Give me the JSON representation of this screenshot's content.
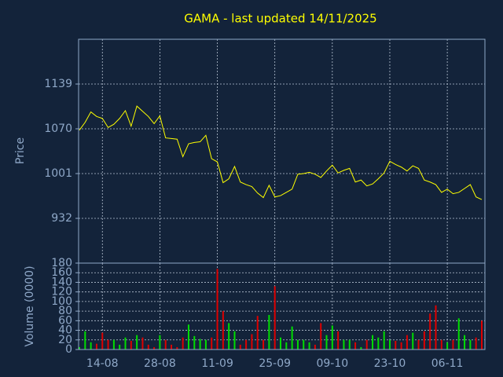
{
  "chart_data": [
    {
      "type": "line",
      "title": "GAMA - last updated 14/11/2025",
      "ylabel": "Price",
      "color": "#ffff00",
      "grid": true,
      "categories": [
        null,
        null,
        null,
        null,
        "14-08",
        null,
        null,
        null,
        null,
        null,
        null,
        null,
        null,
        null,
        "28-08",
        null,
        null,
        null,
        null,
        null,
        null,
        null,
        null,
        null,
        "11-09",
        null,
        null,
        null,
        null,
        null,
        null,
        null,
        null,
        null,
        "25-09",
        null,
        null,
        null,
        null,
        null,
        null,
        null,
        null,
        null,
        "09-10",
        null,
        null,
        null,
        null,
        null,
        null,
        null,
        null,
        null,
        "23-10",
        null,
        null,
        null,
        null,
        null,
        null,
        null,
        null,
        null,
        "06-11",
        null,
        null,
        null,
        null,
        null,
        null
      ],
      "values": [
        1068,
        1080,
        1096,
        1089,
        1086,
        1072,
        1077,
        1086,
        1098,
        1074,
        1105,
        1097,
        1089,
        1078,
        1090,
        1056,
        1055,
        1054,
        1027,
        1047,
        1049,
        1050,
        1060,
        1024,
        1019,
        987,
        993,
        1012,
        988,
        984,
        981,
        971,
        964,
        983,
        965,
        967,
        972,
        977,
        1000,
        1001,
        1003,
        1000,
        995,
        1005,
        1014,
        1002,
        1006,
        1009,
        988,
        991,
        982,
        985,
        993,
        1002,
        1020,
        1015,
        1011,
        1005,
        1013,
        1009,
        991,
        988,
        984,
        972,
        977,
        970,
        972,
        978,
        984,
        965,
        961
      ],
      "ylim": [
        863,
        1208
      ],
      "yticks": [
        932,
        1001,
        1070,
        1139
      ]
    },
    {
      "type": "bar",
      "ylabel": "Volume (0000)",
      "up_color": "#00dd00",
      "down_color": "#dd0000",
      "grid": true,
      "values": [
        5,
        38,
        15,
        12,
        35,
        20,
        20,
        10,
        25,
        18,
        30,
        25,
        10,
        5,
        30,
        20,
        10,
        5,
        25,
        52,
        28,
        22,
        20,
        25,
        168,
        80,
        55,
        38,
        10,
        20,
        32,
        70,
        20,
        72,
        132,
        25,
        15,
        48,
        20,
        20,
        15,
        10,
        55,
        30,
        50,
        38,
        20,
        20,
        15,
        5,
        20,
        30,
        25,
        38,
        20,
        18,
        15,
        30,
        35,
        20,
        38,
        75,
        92,
        20,
        15,
        20,
        65,
        30,
        20,
        25,
        60
      ],
      "ylim": [
        0,
        180
      ],
      "yticks": [
        0,
        20,
        40,
        60,
        80,
        100,
        120,
        140,
        160,
        180
      ]
    }
  ]
}
